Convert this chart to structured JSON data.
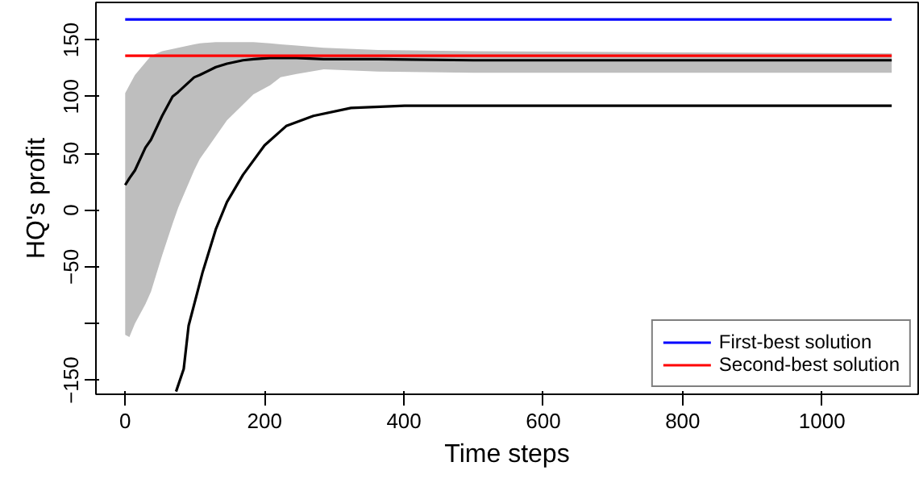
{
  "chart_data": {
    "type": "line",
    "xlabel": "Time steps",
    "ylabel": "HQ's profit",
    "xlim": [
      -42,
      1138
    ],
    "ylim": [
      -162.4,
      183
    ],
    "xticks": [
      0,
      200,
      400,
      600,
      800,
      1000
    ],
    "yticks": [
      -150,
      {
        "value": -100,
        "label": null
      },
      -50,
      0,
      50,
      100,
      150
    ],
    "grid": false,
    "legend": "bottom right",
    "series": [
      {
        "color": "#000000",
        "x": [
          0,
          6,
          14,
          29,
          37,
          53,
          68,
          76,
          99,
          107,
          130,
          146,
          169,
          184,
          208,
          223,
          246,
          285,
          363,
          500,
          800,
          1100
        ],
        "values": [
          22,
          28,
          35,
          55,
          62,
          83,
          100,
          104,
          117,
          119,
          126,
          129,
          132,
          133,
          134,
          134,
          134,
          133,
          133,
          132,
          132,
          132
        ],
        "lower": [
          -110,
          -112,
          -100,
          -83,
          -72,
          -40,
          -12,
          2,
          35,
          45,
          65,
          79,
          93,
          102,
          110,
          117,
          120,
          124,
          122,
          121,
          121,
          121
        ],
        "upper": [
          103,
          110,
          119,
          130,
          136,
          140,
          142,
          143,
          146,
          147,
          148,
          148,
          148,
          148,
          147,
          146,
          145,
          143,
          141,
          140,
          139,
          138
        ]
      },
      {
        "color": "#000000",
        "x": [
          73,
          84,
          91,
          111,
          130,
          146,
          169,
          200,
          231,
          270,
          324,
          401,
          600,
          1100
        ],
        "values": [
          -160,
          -140,
          -102,
          -55,
          -17,
          7,
          31,
          57,
          74,
          83,
          90,
          92,
          92,
          92
        ]
      },
      {
        "name": "First-best solution",
        "color": "#0000ff",
        "x": [
          0,
          1100
        ],
        "values": [
          168,
          168
        ]
      },
      {
        "name": "Second-best solution",
        "color": "#ff0000",
        "x": [
          0,
          1100
        ],
        "values": [
          136,
          136
        ]
      }
    ]
  }
}
